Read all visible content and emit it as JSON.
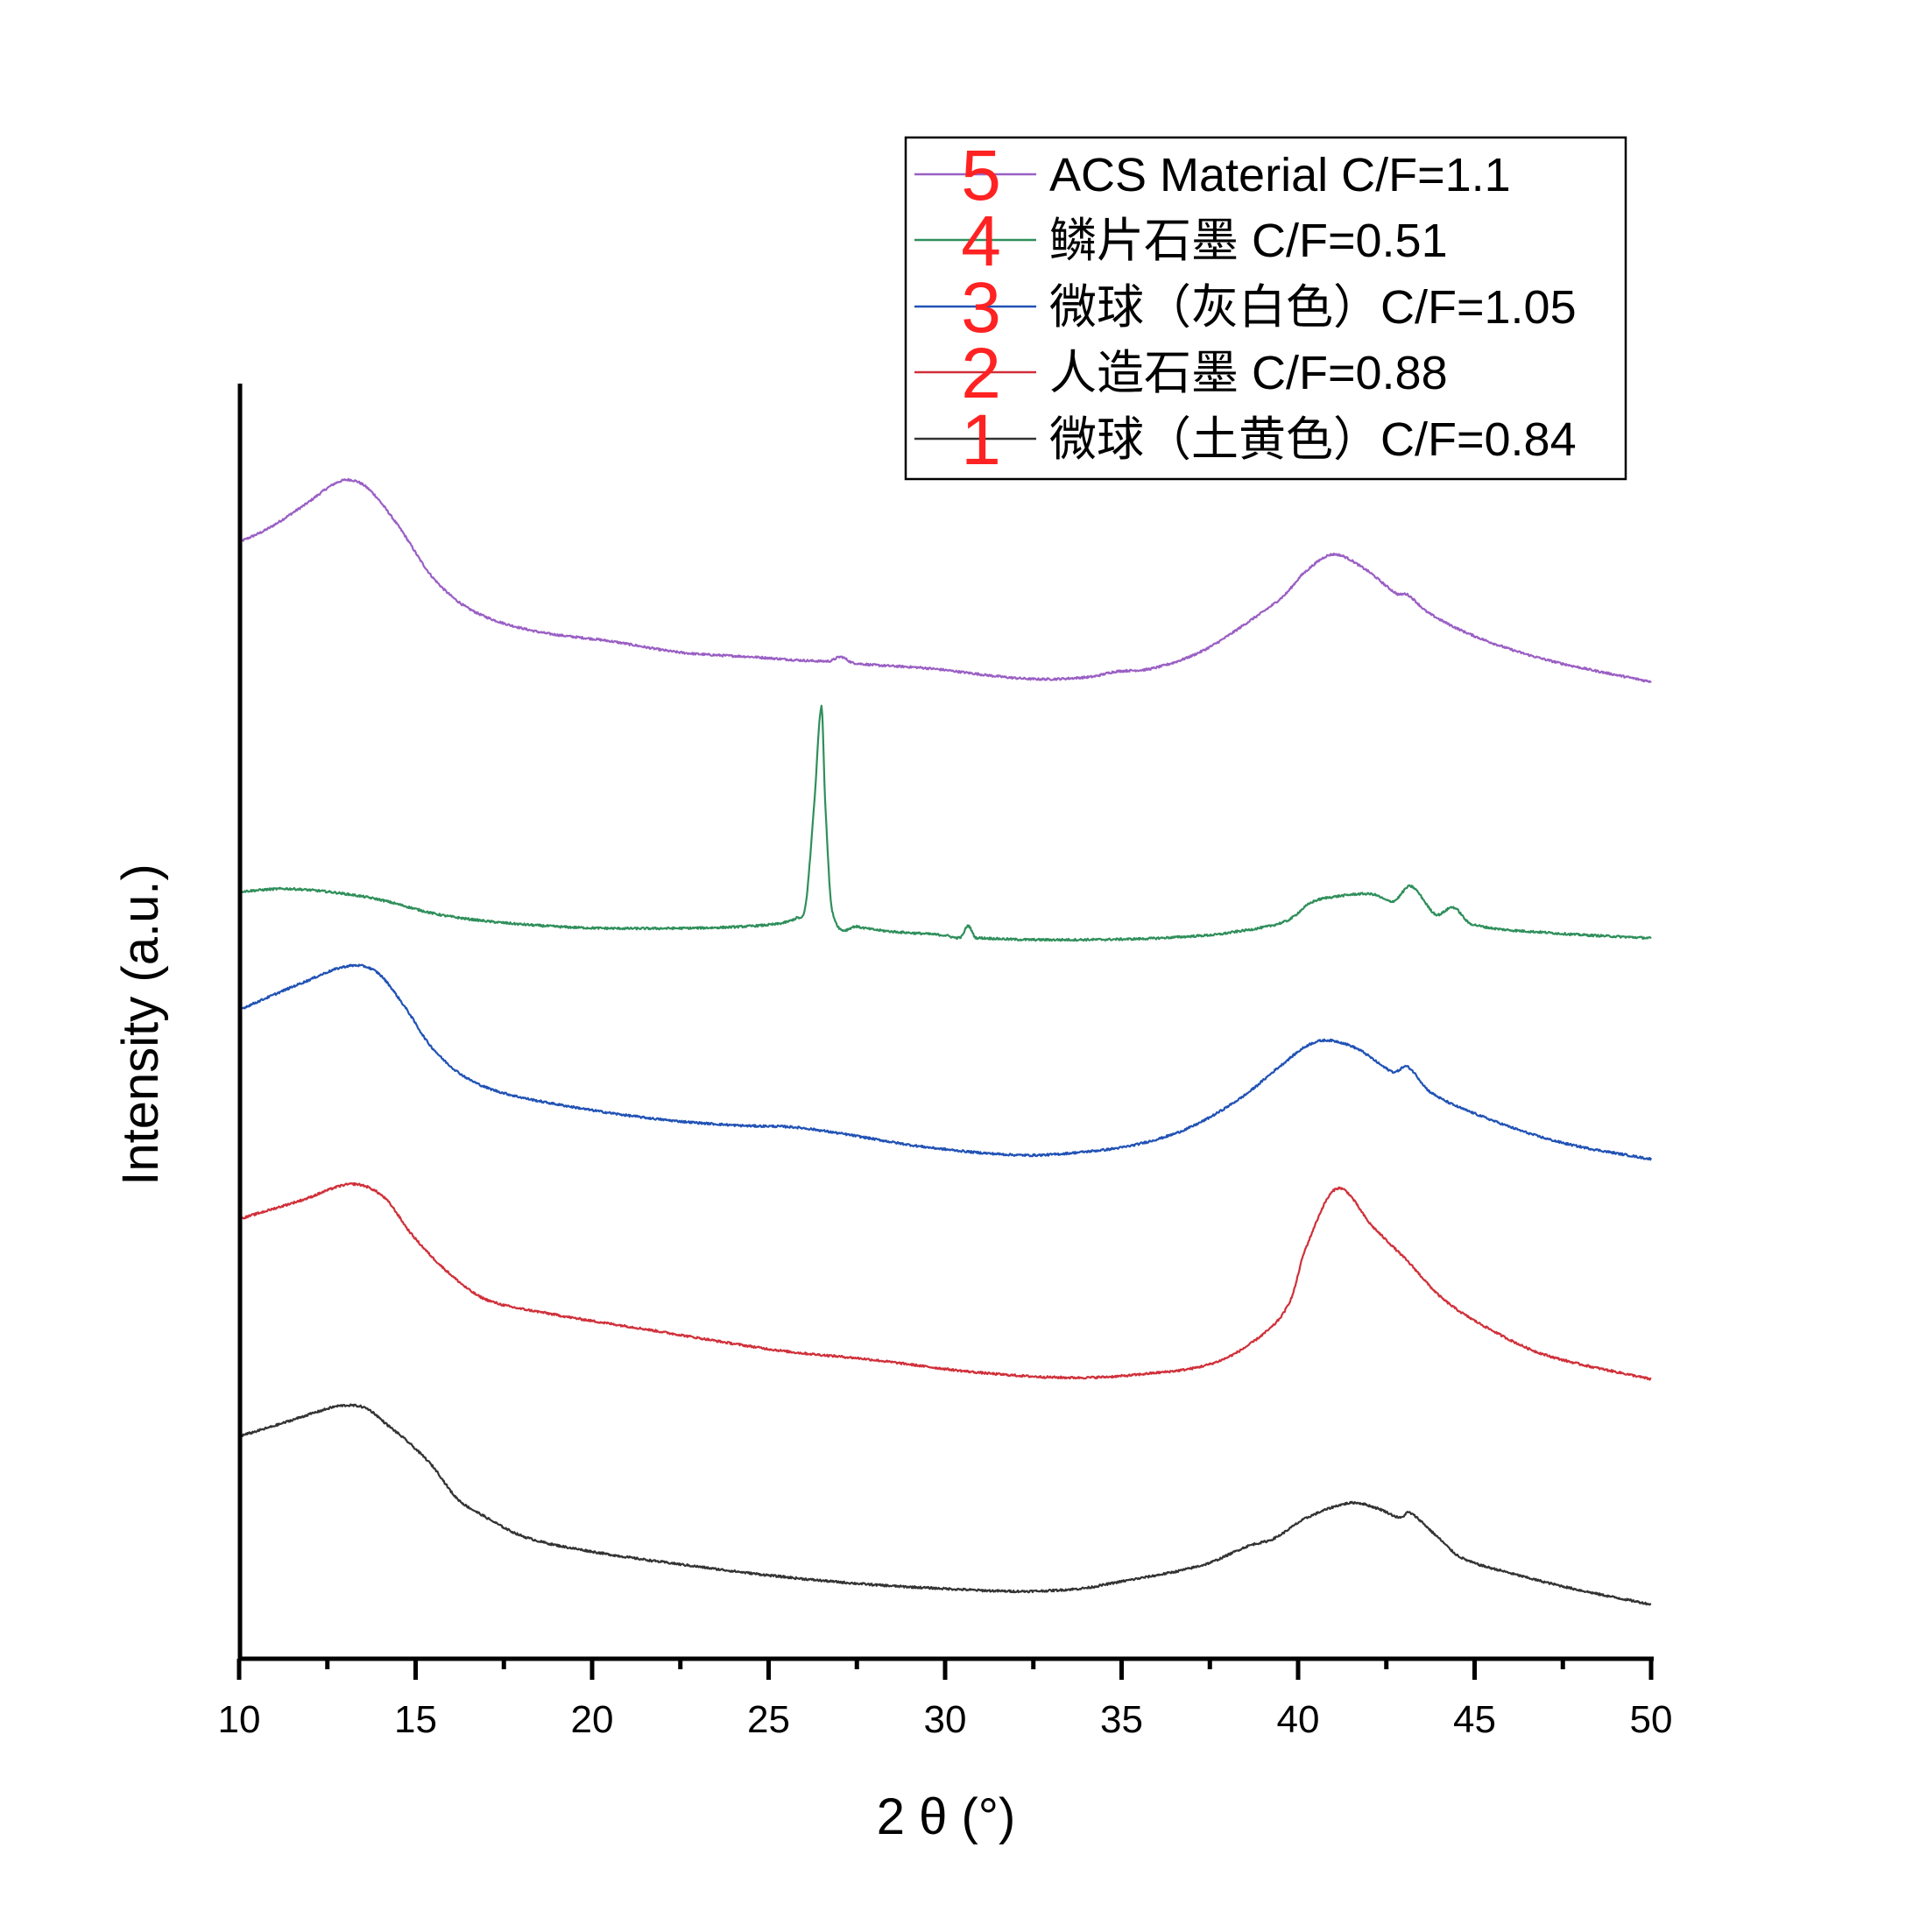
{
  "chart_data": {
    "type": "line",
    "title": "",
    "xlabel": "2 θ (°)",
    "ylabel": "Intensity (a.u.)",
    "xlim": [
      10,
      50
    ],
    "x_ticks": [
      10,
      15,
      20,
      25,
      30,
      35,
      40,
      45,
      50
    ],
    "x_tick_labels": [
      "10",
      "15",
      "20",
      "25",
      "30",
      "35",
      "40",
      "45",
      "50"
    ],
    "x_minor_ticks": [
      12.5,
      17.5,
      22.5,
      27.5,
      32.5,
      37.5,
      42.5,
      47.5
    ],
    "y_ticks": [],
    "grid": false,
    "legend_position": "upper right (inside)",
    "note": "Stacked XRD patterns; y values are relative vertical positions (arbitrary units, offset-stacked) read from the plot",
    "series": [
      {
        "id": 5,
        "name": "ACS Material C/F=1.1",
        "legend_number": "5",
        "color": "#9a5fc4",
        "points": [
          [
            10,
            1275
          ],
          [
            10.8,
            1290
          ],
          [
            11.8,
            1316
          ],
          [
            12.9,
            1345
          ],
          [
            13.6,
            1338
          ],
          [
            14.5,
            1294
          ],
          [
            15.5,
            1234
          ],
          [
            16.6,
            1197
          ],
          [
            18.3,
            1174
          ],
          [
            20.5,
            1162
          ],
          [
            22.5,
            1149
          ],
          [
            24.5,
            1144
          ],
          [
            26.7,
            1139
          ],
          [
            27.05,
            1144
          ],
          [
            27.4,
            1137
          ],
          [
            29.5,
            1131
          ],
          [
            32.3,
            1119
          ],
          [
            34.1,
            1121
          ],
          [
            34.8,
            1127
          ],
          [
            35.9,
            1131
          ],
          [
            37.3,
            1151
          ],
          [
            38.7,
            1187
          ],
          [
            39.6,
            1214
          ],
          [
            40.2,
            1241
          ],
          [
            41.0,
            1261
          ],
          [
            41.9,
            1244
          ],
          [
            42.8,
            1216
          ],
          [
            43.1,
            1215
          ],
          [
            43.7,
            1194
          ],
          [
            45.1,
            1166
          ],
          [
            47.0,
            1141
          ],
          [
            49.8,
            1117
          ],
          [
            50,
            1116
          ]
        ]
      },
      {
        "id": 4,
        "name": "鳞片石墨 C/F=0.51",
        "legend_number": "4",
        "color": "#2f8f5b",
        "points": [
          [
            10,
            876
          ],
          [
            11.5,
            879
          ],
          [
            13.7,
            869
          ],
          [
            15.9,
            848
          ],
          [
            19.0,
            836
          ],
          [
            22.2,
            834
          ],
          [
            25.0,
            838
          ],
          [
            25.8,
            846
          ],
          [
            26.05,
            861
          ],
          [
            26.3,
            981
          ],
          [
            26.5,
            1087
          ],
          [
            26.6,
            981
          ],
          [
            26.8,
            854
          ],
          [
            27.5,
            836
          ],
          [
            30.0,
            826
          ],
          [
            30.45,
            824
          ],
          [
            30.65,
            837
          ],
          [
            30.85,
            824
          ],
          [
            31.0,
            823
          ],
          [
            32.5,
            821
          ],
          [
            35.5,
            822
          ],
          [
            37.4,
            826
          ],
          [
            37.9,
            828
          ],
          [
            39.65,
            842
          ],
          [
            40.4,
            864
          ],
          [
            41.2,
            871
          ],
          [
            42.1,
            873
          ],
          [
            42.7,
            865
          ],
          [
            43.2,
            882
          ],
          [
            43.9,
            850
          ],
          [
            44.4,
            858
          ],
          [
            44.9,
            839
          ],
          [
            47.1,
            829
          ],
          [
            49.9,
            823
          ],
          [
            50,
            823
          ]
        ]
      },
      {
        "id": 3,
        "name": "微球（灰白色）C/F=1.05",
        "legend_number": "3",
        "color": "#2152b5",
        "points": [
          [
            10,
            741
          ],
          [
            11.8,
            772
          ],
          [
            13.1,
            791
          ],
          [
            13.9,
            784
          ],
          [
            14.7,
            744
          ],
          [
            15.4,
            701
          ],
          [
            16.3,
            667
          ],
          [
            17.4,
            647
          ],
          [
            19.6,
            629
          ],
          [
            21.9,
            616
          ],
          [
            24.1,
            609
          ],
          [
            25.7,
            607
          ],
          [
            27.0,
            600
          ],
          [
            29.5,
            584
          ],
          [
            32.2,
            575
          ],
          [
            34.0,
            579
          ],
          [
            35.4,
            587
          ],
          [
            36.9,
            606
          ],
          [
            38.4,
            641
          ],
          [
            39.5,
            677
          ],
          [
            40.3,
            701
          ],
          [
            40.9,
            706
          ],
          [
            41.7,
            696
          ],
          [
            42.7,
            670
          ],
          [
            43.1,
            676
          ],
          [
            43.75,
            647
          ],
          [
            45.1,
            621
          ],
          [
            47.3,
            591
          ],
          [
            49.9,
            571
          ],
          [
            50,
            571
          ]
        ]
      },
      {
        "id": 2,
        "name": "人造石墨 C/F=0.88",
        "legend_number": "2",
        "color": "#d0303a",
        "points": [
          [
            10,
            502
          ],
          [
            11.8,
            524
          ],
          [
            13.2,
            542
          ],
          [
            14.1,
            527
          ],
          [
            14.9,
            484
          ],
          [
            15.9,
            442
          ],
          [
            16.95,
            411
          ],
          [
            18.8,
            394
          ],
          [
            21.4,
            377
          ],
          [
            25.3,
            352
          ],
          [
            27.8,
            342
          ],
          [
            30.9,
            327
          ],
          [
            33.5,
            321
          ],
          [
            35.6,
            325
          ],
          [
            37.7,
            339
          ],
          [
            39.2,
            377
          ],
          [
            39.8,
            411
          ],
          [
            40.2,
            467
          ],
          [
            41.1,
            537
          ],
          [
            42.1,
            494
          ],
          [
            43.1,
            454
          ],
          [
            44.1,
            411
          ],
          [
            45.4,
            377
          ],
          [
            47.0,
            347
          ],
          [
            50,
            319
          ]
        ]
      },
      {
        "id": 1,
        "name": "微球（土黄色）C/F=0.84",
        "legend_number": "1",
        "color": "#333333",
        "points": [
          [
            10,
            254
          ],
          [
            11.0,
            266
          ],
          [
            12.3,
            283
          ],
          [
            12.9,
            289
          ],
          [
            13.6,
            286
          ],
          [
            14.2,
            267
          ],
          [
            14.8,
            247
          ],
          [
            15.5,
            219
          ],
          [
            16.15,
            184
          ],
          [
            16.8,
            166
          ],
          [
            18.1,
            139
          ],
          [
            20.05,
            122
          ],
          [
            22.65,
            107
          ],
          [
            25.3,
            94
          ],
          [
            27.8,
            85
          ],
          [
            30.0,
            80
          ],
          [
            32.1,
            77
          ],
          [
            33.8,
            80
          ],
          [
            34.7,
            86
          ],
          [
            37.3,
            107
          ],
          [
            38.6,
            129
          ],
          [
            39.3,
            137
          ],
          [
            40.25,
            161
          ],
          [
            41.5,
            178
          ],
          [
            42.3,
            171
          ],
          [
            42.9,
            161
          ],
          [
            43.15,
            167
          ],
          [
            43.9,
            141
          ],
          [
            44.6,
            116
          ],
          [
            45.9,
            99
          ],
          [
            47.9,
            79
          ],
          [
            50,
            62
          ]
        ]
      }
    ]
  },
  "legend": {
    "items": [
      {
        "number": "5",
        "label": "ACS Material C/F=1.1",
        "color": "#9a5fc4"
      },
      {
        "number": "4",
        "label": "鳞片石墨 C/F=0.51",
        "color": "#2f8f5b"
      },
      {
        "number": "3",
        "label": "微球（灰白色）C/F=1.05",
        "color": "#2152b5"
      },
      {
        "number": "2",
        "label": "人造石墨 C/F=0.88",
        "color": "#d0303a"
      },
      {
        "number": "1",
        "label": "微球（土黄色）C/F=0.84",
        "color": "#333333"
      }
    ]
  },
  "axes": {
    "x_title": "2 θ (°)",
    "y_title": "Intensity (a.u.)"
  },
  "colors": {
    "axis": "#000000",
    "legend_number": "#ff2222",
    "background": "#ffffff"
  }
}
